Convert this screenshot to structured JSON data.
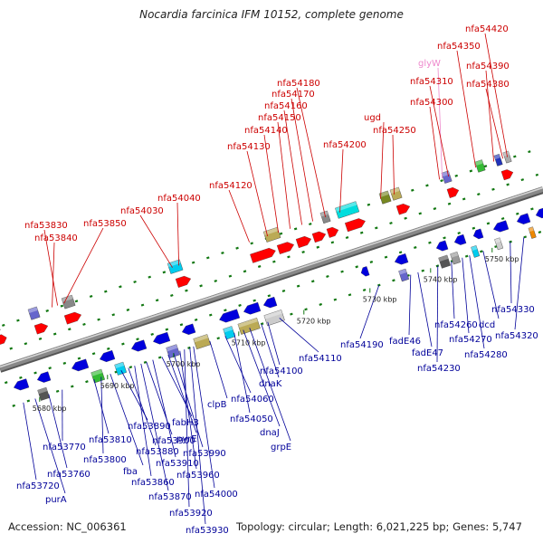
{
  "title": "Nocardia farcinica IFM 10152, complete genome",
  "accession": "Accession: NC_006361",
  "summary": "Topology: circular; Length: 6,021,225 bp; Genes: 5,747",
  "colors": {
    "top_label": "#cc0000",
    "bottom_label": "#000099",
    "trna_label": "#ee88cc",
    "plus_gene": "#ff0000",
    "minus_gene": "#0000dd",
    "backbone": "#888888",
    "tick": "#117711"
  },
  "ticks": [
    "5680 kbp",
    "5690 kbp",
    "5700 kbp",
    "5710 kbp",
    "5720 kbp",
    "5730 kbp",
    "5740 kbp",
    "5750 kbp"
  ],
  "top_labels": [
    "nfa53830",
    "nfa53840",
    "nfa53850",
    "nfa54030",
    "nfa54040",
    "nfa54120",
    "nfa54130",
    "nfa54140",
    "nfa54150",
    "nfa54160",
    "nfa54170",
    "nfa54180",
    "nfa54200",
    "ugd",
    "nfa54250",
    "glyW",
    "nfa54300",
    "nfa54310",
    "nfa54350",
    "nfa54390",
    "nfa54380",
    "nfa54420"
  ],
  "bottom_labels": [
    "nfa53720",
    "purA",
    "nfa53760",
    "nfa53770",
    "nfa53810",
    "nfa53800",
    "fba",
    "nfa53890",
    "nfa53880",
    "nfa53860",
    "nfa53870",
    "nfa53900",
    "nfa53910",
    "fabH3",
    "pyrE",
    "nfa53990",
    "nfa53960",
    "nfa53920",
    "nfa53930",
    "nfa54000",
    "clpB",
    "nfa54060",
    "nfa54050",
    "dnaJ",
    "grpE",
    "dnaK",
    "nfa54100",
    "nfa54110",
    "nfa54190",
    "fadE46",
    "fadE47",
    "nfa54230",
    "nfa54260",
    "nfa54270",
    "nfa54280",
    "dcd",
    "nfa54330",
    "nfa54320"
  ]
}
